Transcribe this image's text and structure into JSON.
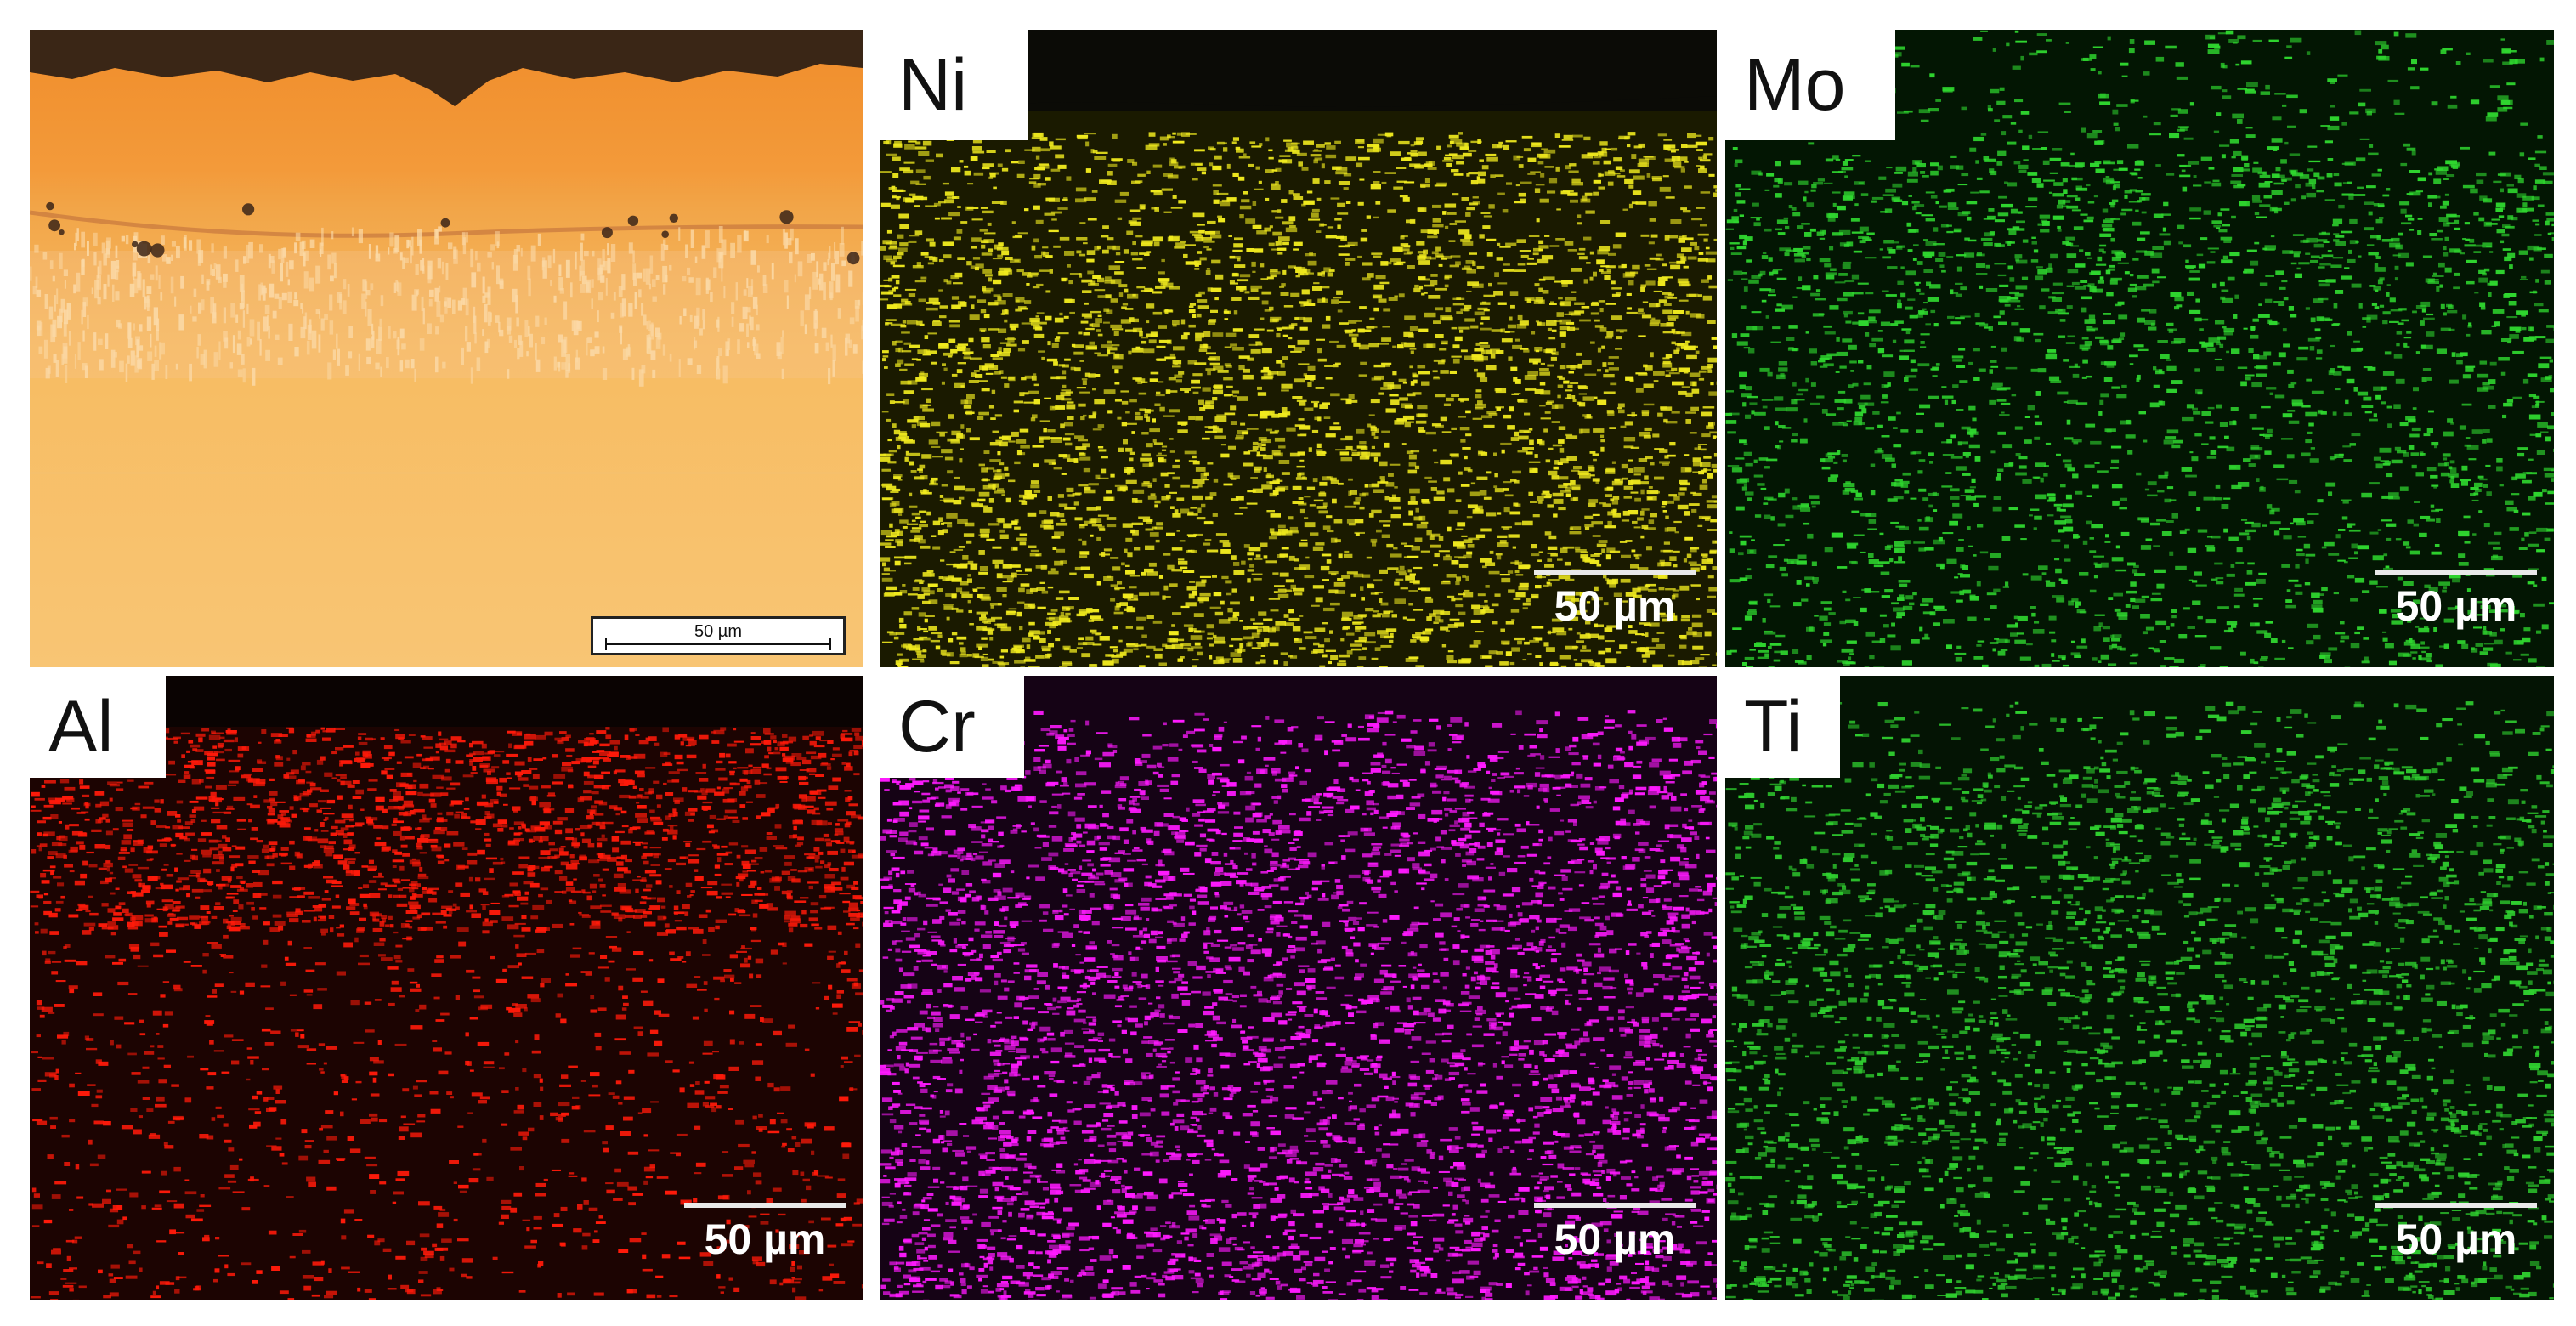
{
  "figure": {
    "panels": [
      {
        "id": "optical",
        "label": "",
        "scale_text": "50 µm",
        "kind": "optical"
      },
      {
        "id": "ni",
        "label": "Ni",
        "scale_text": "50 µm",
        "color": "#f0ea1e"
      },
      {
        "id": "mo",
        "label": "Mo",
        "scale_text": "50 µm",
        "color": "#2fd72f"
      },
      {
        "id": "al",
        "label": "Al",
        "scale_text": "50 µm",
        "color": "#ff1a0a"
      },
      {
        "id": "cr",
        "label": "Cr",
        "scale_text": "50 µm",
        "color": "#ff1aff"
      },
      {
        "id": "ti",
        "label": "Ti",
        "scale_text": "50 µm",
        "color": "#2fcf2f"
      }
    ]
  }
}
